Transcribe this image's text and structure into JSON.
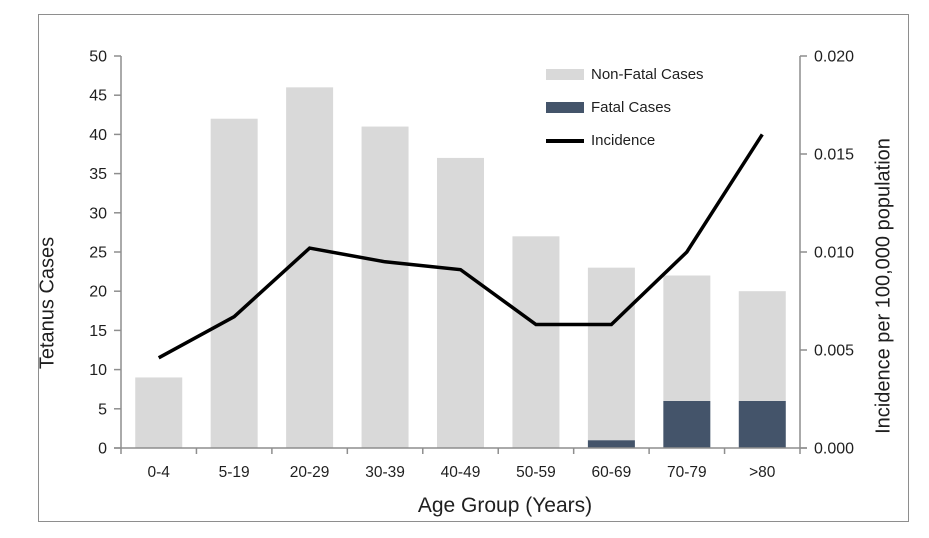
{
  "figure": {
    "x_axis_title": "Age Group (Years)",
    "left_axis_title": "Tetanus Cases",
    "right_axis_title": "Incidence per 100,000 population"
  },
  "chart_data": {
    "type": "combo-stacked-bar-line",
    "title": "",
    "xlabel": "Age Group (Years)",
    "ylabel_left": "Tetanus Cases",
    "ylabel_right": "Incidence per 100,000 population",
    "categories": [
      "0-4",
      "5-19",
      "20-29",
      "30-39",
      "40-49",
      "50-59",
      "60-69",
      "70-79",
      ">80"
    ],
    "series": [
      {
        "name": "Non-Fatal Cases",
        "type": "bar",
        "stack": "cases",
        "axis": "left",
        "color": "#d9d9d9",
        "values": [
          9,
          42,
          46,
          41,
          37,
          27,
          22,
          16,
          14
        ]
      },
      {
        "name": "Fatal Cases",
        "type": "bar",
        "stack": "cases",
        "axis": "left",
        "color": "#44546a",
        "values": [
          0,
          0,
          0,
          0,
          0,
          0,
          1,
          6,
          6
        ]
      },
      {
        "name": "Incidence",
        "type": "line",
        "axis": "right",
        "color": "#000000",
        "values": [
          0.0046,
          0.0067,
          0.0102,
          0.0095,
          0.0091,
          0.0063,
          0.0063,
          0.01,
          0.016
        ]
      }
    ],
    "stacked_bar_totals": [
      9,
      42,
      46,
      41,
      37,
      27,
      23,
      22,
      20
    ],
    "left_axis": {
      "min": 0,
      "max": 50,
      "tick_step": 5,
      "tick_labels": [
        "0",
        "5",
        "10",
        "15",
        "20",
        "25",
        "30",
        "35",
        "40",
        "45",
        "50"
      ]
    },
    "right_axis": {
      "min": 0,
      "max": 0.02,
      "tick_step": 0.005,
      "tick_labels": [
        "0.000",
        "0.005",
        "0.010",
        "0.015",
        "0.020"
      ]
    },
    "legend_position": "top-right-inside",
    "grid": false
  },
  "colors": {
    "non_fatal": "#d9d9d9",
    "fatal": "#44546a",
    "line": "#000000",
    "axis": "#8e8e8e",
    "frame_border": "#8e8e8e",
    "text": "#1f1f1f",
    "background": "#ffffff"
  }
}
